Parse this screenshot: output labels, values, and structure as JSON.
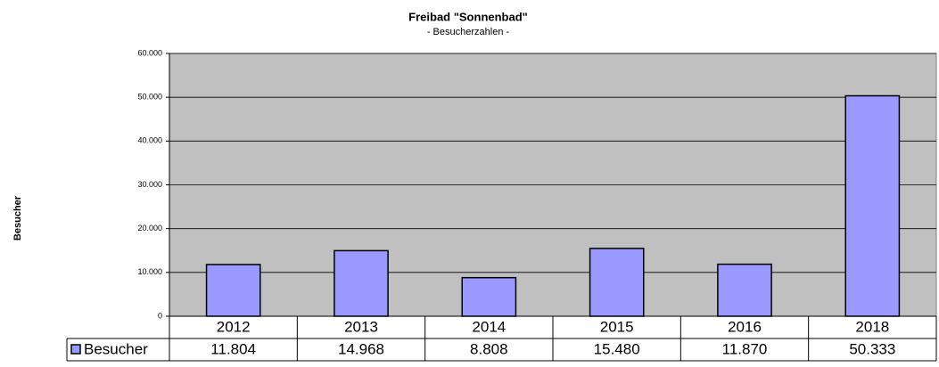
{
  "chart_data": {
    "type": "bar",
    "title": "Freibad \"Sonnenbad\"",
    "subtitle": "- Besucherzahlen -",
    "y_label": "Besucher",
    "categories": [
      "2012",
      "2013",
      "2014",
      "2015",
      "2016",
      "2018"
    ],
    "series": [
      {
        "name": "Besucher",
        "color": "#9999ff",
        "values": [
          11804,
          14968,
          8808,
          15480,
          11870,
          50333
        ],
        "value_labels": [
          "11.804",
          "14.968",
          "8.808",
          "15.480",
          "11.870",
          "50.333"
        ]
      }
    ],
    "ylim": [
      0,
      60000
    ],
    "yticks": [
      0,
      {
        "value": 10000,
        "label": "10.000"
      },
      {
        "value": 20000,
        "label": "20.000"
      },
      {
        "value": 30000,
        "label": "30.000"
      },
      {
        "value": 40000,
        "label": "40.000"
      },
      {
        "value": 50000,
        "label": "50.000"
      },
      {
        "value": 60000,
        "label": "60.000"
      }
    ],
    "grid": true,
    "plot_background": "#c0c0c0"
  }
}
